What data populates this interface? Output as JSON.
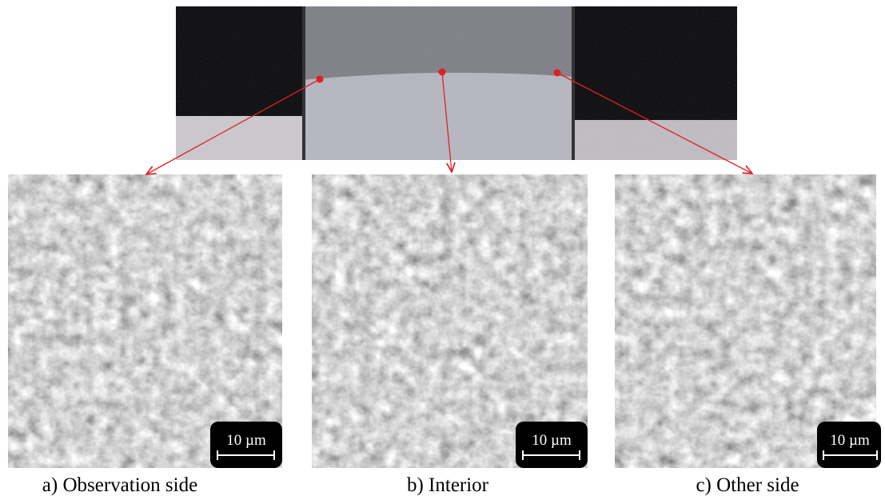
{
  "panels": [
    {
      "caption": "a) Observation side",
      "scale_bar": "10 µm"
    },
    {
      "caption": "b) Interior",
      "scale_bar": "10 µm"
    },
    {
      "caption": "c) Other side",
      "scale_bar": "10 µm"
    }
  ]
}
